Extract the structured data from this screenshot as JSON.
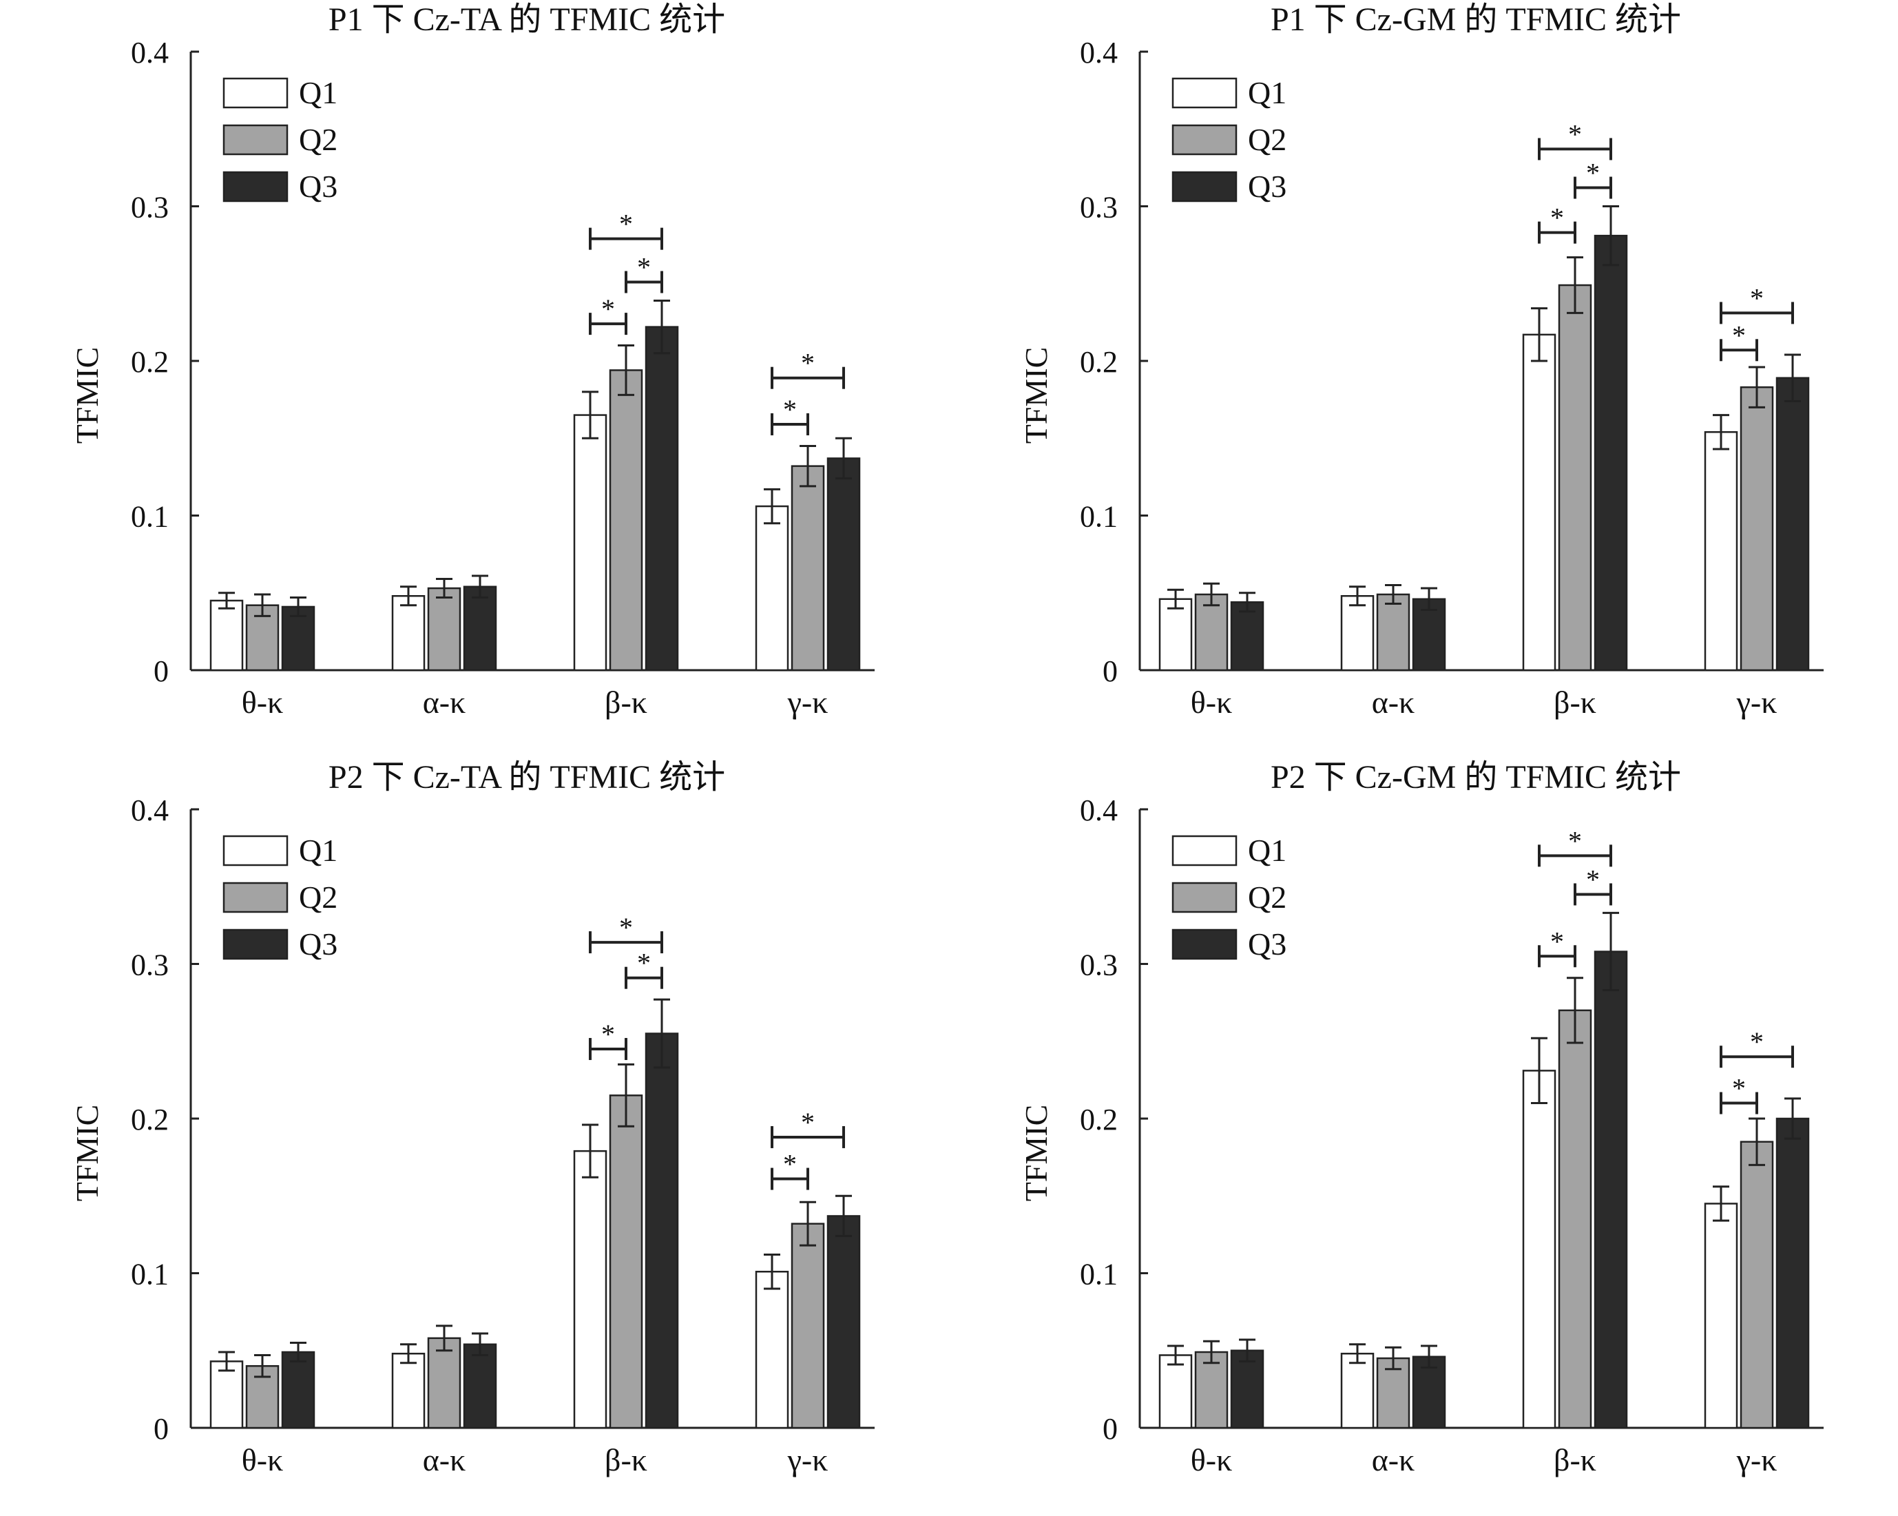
{
  "colors": {
    "Q1": "#ffffff",
    "Q2": "#a3a3a3",
    "Q3": "#2b2b2b",
    "axis": "#222222",
    "bar_outline": "#222222"
  },
  "chart_data": [
    {
      "type": "bar",
      "title": "P1 下 Cz-TA 的 TFMIC 统计",
      "xlabel": "",
      "ylabel": "TFMIC",
      "ylim": [
        0,
        0.4
      ],
      "yticks": [
        "0",
        "0.1",
        "0.2",
        "0.3",
        "0.4"
      ],
      "categories": [
        "θ-κ",
        "α-κ",
        "β-κ",
        "γ-κ"
      ],
      "legend": "top-left",
      "series": [
        {
          "name": "Q1",
          "values": [
            0.045,
            0.048,
            0.165,
            0.106
          ],
          "errors": [
            0.005,
            0.006,
            0.015,
            0.011
          ]
        },
        {
          "name": "Q2",
          "values": [
            0.042,
            0.053,
            0.194,
            0.132
          ],
          "errors": [
            0.007,
            0.006,
            0.016,
            0.013
          ]
        },
        {
          "name": "Q3",
          "values": [
            0.041,
            0.054,
            0.222,
            0.137
          ],
          "errors": [
            0.006,
            0.007,
            0.017,
            0.013
          ]
        }
      ],
      "significance": [
        {
          "category": 2,
          "from": 0,
          "to": 1,
          "y": 0.224,
          "label": "*"
        },
        {
          "category": 2,
          "from": 1,
          "to": 2,
          "y": 0.251,
          "label": "*"
        },
        {
          "category": 2,
          "from": 0,
          "to": 2,
          "y": 0.279,
          "label": "*"
        },
        {
          "category": 3,
          "from": 0,
          "to": 1,
          "y": 0.159,
          "label": "*"
        },
        {
          "category": 3,
          "from": 0,
          "to": 2,
          "y": 0.189,
          "label": "*"
        }
      ]
    },
    {
      "type": "bar",
      "title": "P1 下 Cz-GM 的 TFMIC 统计",
      "xlabel": "",
      "ylabel": "TFMIC",
      "ylim": [
        0,
        0.4
      ],
      "yticks": [
        "0",
        "0.1",
        "0.2",
        "0.3",
        "0.4"
      ],
      "categories": [
        "θ-κ",
        "α-κ",
        "β-κ",
        "γ-κ"
      ],
      "legend": "top-left",
      "series": [
        {
          "name": "Q1",
          "values": [
            0.046,
            0.048,
            0.217,
            0.154
          ],
          "errors": [
            0.006,
            0.006,
            0.017,
            0.011
          ]
        },
        {
          "name": "Q2",
          "values": [
            0.049,
            0.049,
            0.249,
            0.183
          ],
          "errors": [
            0.007,
            0.006,
            0.018,
            0.013
          ]
        },
        {
          "name": "Q3",
          "values": [
            0.044,
            0.046,
            0.281,
            0.189
          ],
          "errors": [
            0.006,
            0.007,
            0.019,
            0.015
          ]
        }
      ],
      "significance": [
        {
          "category": 2,
          "from": 0,
          "to": 1,
          "y": 0.283,
          "label": "*"
        },
        {
          "category": 2,
          "from": 1,
          "to": 2,
          "y": 0.312,
          "label": "*"
        },
        {
          "category": 2,
          "from": 0,
          "to": 2,
          "y": 0.337,
          "label": "*"
        },
        {
          "category": 3,
          "from": 0,
          "to": 1,
          "y": 0.207,
          "label": "*"
        },
        {
          "category": 3,
          "from": 0,
          "to": 2,
          "y": 0.231,
          "label": "*"
        }
      ]
    },
    {
      "type": "bar",
      "title": "P2 下 Cz-TA 的 TFMIC 统计",
      "xlabel": "",
      "ylabel": "TFMIC",
      "ylim": [
        0,
        0.4
      ],
      "yticks": [
        "0",
        "0.1",
        "0.2",
        "0.3",
        "0.4"
      ],
      "categories": [
        "θ-κ",
        "α-κ",
        "β-κ",
        "γ-κ"
      ],
      "legend": "top-left",
      "series": [
        {
          "name": "Q1",
          "values": [
            0.043,
            0.048,
            0.179,
            0.101
          ],
          "errors": [
            0.006,
            0.006,
            0.017,
            0.011
          ]
        },
        {
          "name": "Q2",
          "values": [
            0.04,
            0.058,
            0.215,
            0.132
          ],
          "errors": [
            0.007,
            0.008,
            0.02,
            0.014
          ]
        },
        {
          "name": "Q3",
          "values": [
            0.049,
            0.054,
            0.255,
            0.137
          ],
          "errors": [
            0.006,
            0.007,
            0.022,
            0.013
          ]
        }
      ],
      "significance": [
        {
          "category": 2,
          "from": 0,
          "to": 1,
          "y": 0.245,
          "label": "*"
        },
        {
          "category": 2,
          "from": 1,
          "to": 2,
          "y": 0.291,
          "label": "*"
        },
        {
          "category": 2,
          "from": 0,
          "to": 2,
          "y": 0.314,
          "label": "*"
        },
        {
          "category": 3,
          "from": 0,
          "to": 1,
          "y": 0.161,
          "label": "*"
        },
        {
          "category": 3,
          "from": 0,
          "to": 2,
          "y": 0.188,
          "label": "*"
        }
      ]
    },
    {
      "type": "bar",
      "title": "P2 下 Cz-GM 的 TFMIC 统计",
      "xlabel": "",
      "ylabel": "TFMIC",
      "ylim": [
        0,
        0.4
      ],
      "yticks": [
        "0",
        "0.1",
        "0.2",
        "0.3",
        "0.4"
      ],
      "categories": [
        "θ-κ",
        "α-κ",
        "β-κ",
        "γ-κ"
      ],
      "legend": "top-left",
      "series": [
        {
          "name": "Q1",
          "values": [
            0.047,
            0.048,
            0.231,
            0.145
          ],
          "errors": [
            0.006,
            0.006,
            0.021,
            0.011
          ]
        },
        {
          "name": "Q2",
          "values": [
            0.049,
            0.045,
            0.27,
            0.185
          ],
          "errors": [
            0.007,
            0.007,
            0.021,
            0.015
          ]
        },
        {
          "name": "Q3",
          "values": [
            0.05,
            0.046,
            0.308,
            0.2
          ],
          "errors": [
            0.007,
            0.007,
            0.025,
            0.013
          ]
        }
      ],
      "significance": [
        {
          "category": 2,
          "from": 0,
          "to": 1,
          "y": 0.305,
          "label": "*"
        },
        {
          "category": 2,
          "from": 1,
          "to": 2,
          "y": 0.345,
          "label": "*"
        },
        {
          "category": 2,
          "from": 0,
          "to": 2,
          "y": 0.37,
          "label": "*"
        },
        {
          "category": 3,
          "from": 0,
          "to": 1,
          "y": 0.21,
          "label": "*"
        },
        {
          "category": 3,
          "from": 0,
          "to": 2,
          "y": 0.24,
          "label": "*"
        }
      ]
    }
  ]
}
